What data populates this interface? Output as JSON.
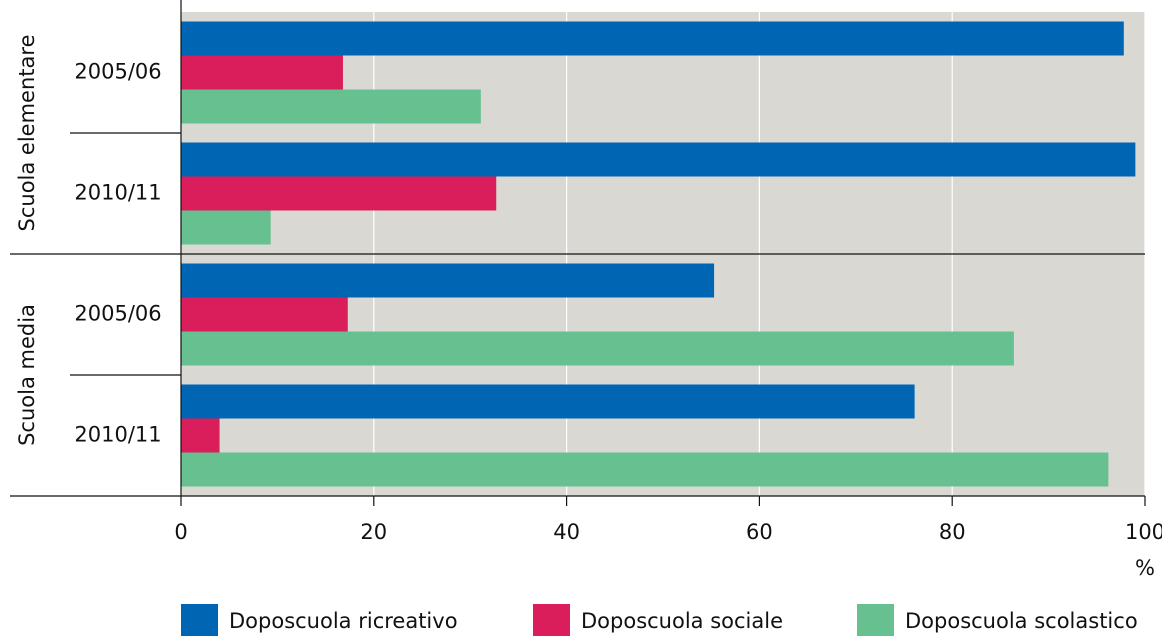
{
  "chart_data": {
    "type": "bar",
    "orientation": "horizontal",
    "groups": [
      {
        "name": "Scuola elementare",
        "categories": [
          "2005/06",
          "2010/11"
        ]
      },
      {
        "name": "Scuola media",
        "categories": [
          "2005/06",
          "2010/11"
        ]
      }
    ],
    "series": [
      {
        "name": "Doposcuola ricreativo",
        "color": "#0066b3",
        "values": [
          97.8,
          99.0,
          55.3,
          76.1
        ]
      },
      {
        "name": "Doposcuola sociale",
        "color": "#d91e5b",
        "values": [
          16.8,
          32.7,
          17.3,
          4.0
        ]
      },
      {
        "name": "Doposcuola scolastico",
        "color": "#66c08f",
        "values": [
          31.1,
          9.3,
          86.4,
          96.2
        ]
      }
    ],
    "xlabel": "%",
    "xlim": [
      0,
      100
    ],
    "xticks": [
      0,
      20,
      40,
      60,
      80,
      100
    ],
    "grid": true,
    "legend": "bottom"
  }
}
